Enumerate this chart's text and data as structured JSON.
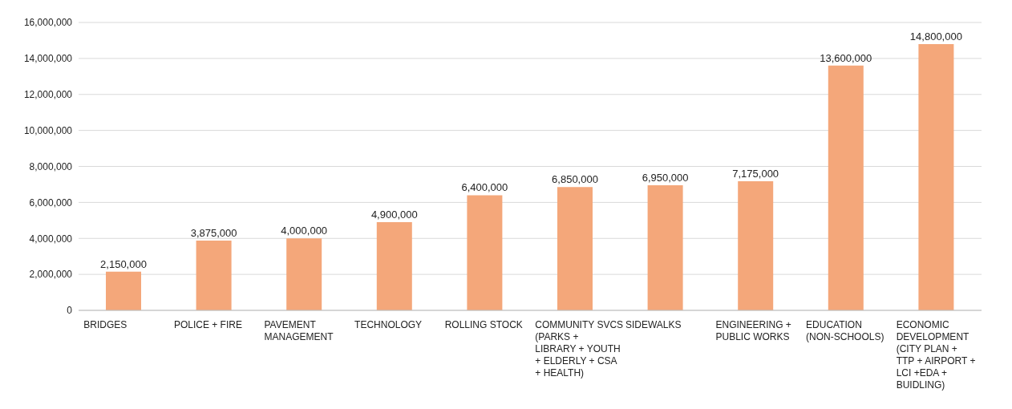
{
  "chart_data": {
    "type": "bar",
    "categories": [
      "BRIDGES",
      "POLICE + FIRE",
      "PAVEMENT MANAGEMENT",
      "TECHNOLOGY",
      "ROLLING STOCK",
      "COMMUNITY SVCS (PARKS + LIBRARY + YOUTH + ELDERLY + CSA + HEALTH)",
      "SIDEWALKS",
      "ENGINEERING + PUBLIC WORKS",
      "EDUCATION (NON-SCHOOLS)",
      "ECONOMIC DEVELOPMENT (CITY PLAN + TTP + AIRPORT + LCI +EDA + BUIDLING)"
    ],
    "values": [
      2150000,
      3875000,
      4000000,
      4900000,
      6400000,
      6850000,
      6950000,
      7175000,
      13600000,
      14800000
    ],
    "value_labels": [
      "2,150,000",
      "3,875,000",
      "4,000,000",
      "4,900,000",
      "6,400,000",
      "6,850,000",
      "6,950,000",
      "7,175,000",
      "13,600,000",
      "14,800,000"
    ],
    "color": "#f4a77a",
    "ylim": [
      0,
      16000000
    ],
    "yticks": [
      0,
      {
        "value": 2000000,
        "label": "2,000,000"
      },
      {
        "value": 4000000,
        "label": "4,000,000"
      },
      {
        "value": 6000000,
        "label": "6,000,000"
      },
      {
        "value": 8000000,
        "label": "8,000,000"
      },
      {
        "value": 10000000,
        "label": "10,000,000"
      },
      {
        "value": 12000000,
        "label": "12,000,000"
      },
      {
        "value": 14000000,
        "label": "14,000,000"
      },
      {
        "value": 16000000,
        "label": "16,000,000"
      }
    ],
    "grid": "y",
    "legend": false
  }
}
